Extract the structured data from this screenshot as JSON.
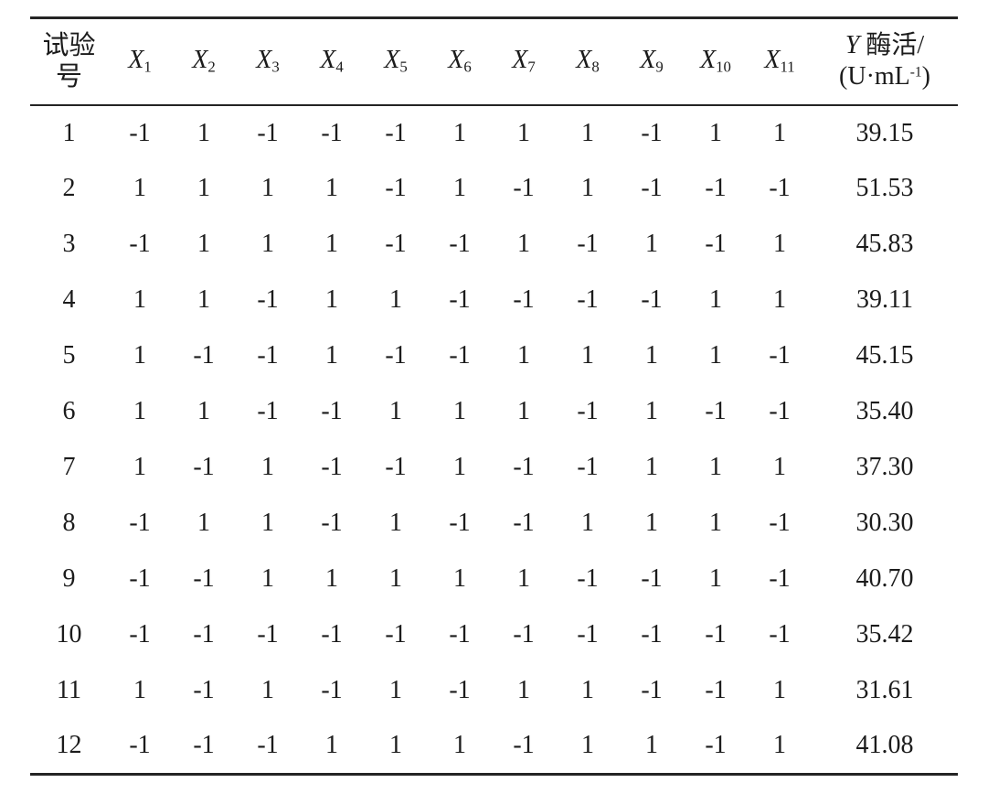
{
  "page": {
    "background_color": "#ffffff",
    "text_color": "#1b1b1b",
    "rule_color": "#242424"
  },
  "table": {
    "header": {
      "run_label_lines": [
        "试验",
        "号"
      ],
      "x_columns": [
        {
          "base": "X",
          "sub": "1"
        },
        {
          "base": "X",
          "sub": "2"
        },
        {
          "base": "X",
          "sub": "3"
        },
        {
          "base": "X",
          "sub": "4"
        },
        {
          "base": "X",
          "sub": "5"
        },
        {
          "base": "X",
          "sub": "6"
        },
        {
          "base": "X",
          "sub": "7"
        },
        {
          "base": "X",
          "sub": "8"
        },
        {
          "base": "X",
          "sub": "9"
        },
        {
          "base": "X",
          "sub": "10"
        },
        {
          "base": "X",
          "sub": "11"
        }
      ],
      "y_label": {
        "base": "Y",
        "rest": " 酶活/",
        "unit_pre": "(U·mL",
        "unit_sup": "-1",
        "unit_post": ")"
      }
    },
    "rows": [
      {
        "no": "1",
        "x": [
          "-1",
          "1",
          "-1",
          "-1",
          "-1",
          "1",
          "1",
          "1",
          "-1",
          "1",
          "1"
        ],
        "y": "39.15"
      },
      {
        "no": "2",
        "x": [
          "1",
          "1",
          "1",
          "1",
          "-1",
          "1",
          "-1",
          "1",
          "-1",
          "-1",
          "-1"
        ],
        "y": "51.53"
      },
      {
        "no": "3",
        "x": [
          "-1",
          "1",
          "1",
          "1",
          "-1",
          "-1",
          "1",
          "-1",
          "1",
          "-1",
          "1"
        ],
        "y": "45.83"
      },
      {
        "no": "4",
        "x": [
          "1",
          "1",
          "-1",
          "1",
          "1",
          "-1",
          "-1",
          "-1",
          "-1",
          "1",
          "1"
        ],
        "y": "39.11"
      },
      {
        "no": "5",
        "x": [
          "1",
          "-1",
          "-1",
          "1",
          "-1",
          "-1",
          "1",
          "1",
          "1",
          "1",
          "-1"
        ],
        "y": "45.15"
      },
      {
        "no": "6",
        "x": [
          "1",
          "1",
          "-1",
          "-1",
          "1",
          "1",
          "1",
          "-1",
          "1",
          "-1",
          "-1"
        ],
        "y": "35.40"
      },
      {
        "no": "7",
        "x": [
          "1",
          "-1",
          "1",
          "-1",
          "-1",
          "1",
          "-1",
          "-1",
          "1",
          "1",
          "1"
        ],
        "y": "37.30"
      },
      {
        "no": "8",
        "x": [
          "-1",
          "1",
          "1",
          "-1",
          "1",
          "-1",
          "-1",
          "1",
          "1",
          "1",
          "-1"
        ],
        "y": "30.30"
      },
      {
        "no": "9",
        "x": [
          "-1",
          "-1",
          "1",
          "1",
          "1",
          "1",
          "1",
          "-1",
          "-1",
          "1",
          "-1"
        ],
        "y": "40.70"
      },
      {
        "no": "10",
        "x": [
          "-1",
          "-1",
          "-1",
          "-1",
          "-1",
          "-1",
          "-1",
          "-1",
          "-1",
          "-1",
          "-1"
        ],
        "y": "35.42"
      },
      {
        "no": "11",
        "x": [
          "1",
          "-1",
          "1",
          "-1",
          "1",
          "-1",
          "1",
          "1",
          "-1",
          "-1",
          "1"
        ],
        "y": "31.61"
      },
      {
        "no": "12",
        "x": [
          "-1",
          "-1",
          "-1",
          "1",
          "1",
          "1",
          "-1",
          "1",
          "1",
          "-1",
          "1"
        ],
        "y": "41.08"
      }
    ]
  }
}
